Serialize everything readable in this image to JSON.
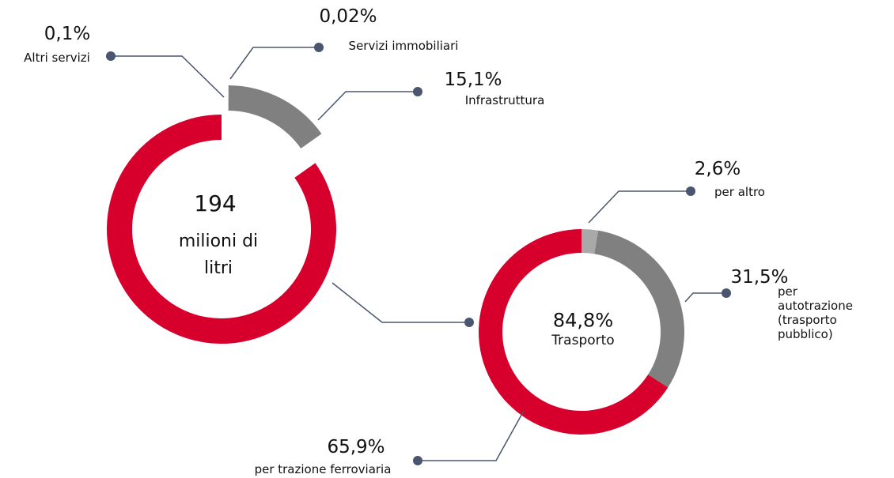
{
  "chart_data": [
    {
      "type": "pie",
      "categories": [
        "Altri servizi",
        "Servizi immobiliari",
        "Infrastruttura",
        "Trasporto"
      ],
      "values": [
        0.1,
        0.02,
        15.1,
        84.8
      ],
      "value_labels": [
        "0,1%",
        "0,02%",
        "15,1%",
        "84,8%"
      ],
      "colors": [
        "#e3e3e3",
        "#c8c8c8",
        "#808080",
        "#d7002c"
      ],
      "total": 194,
      "unit_lines": [
        "milioni di",
        "litri"
      ]
    },
    {
      "type": "pie",
      "categories": [
        "per altro",
        "per autotrazione\n(trasporto pubblico)",
        "per trazione ferroviaria"
      ],
      "values": [
        2.6,
        31.5,
        65.9
      ],
      "value_labels": [
        "2,6%",
        "31,5%",
        "65,9%"
      ],
      "colors": [
        "#a9a9a9",
        "#808080",
        "#d7002c"
      ]
    }
  ]
}
